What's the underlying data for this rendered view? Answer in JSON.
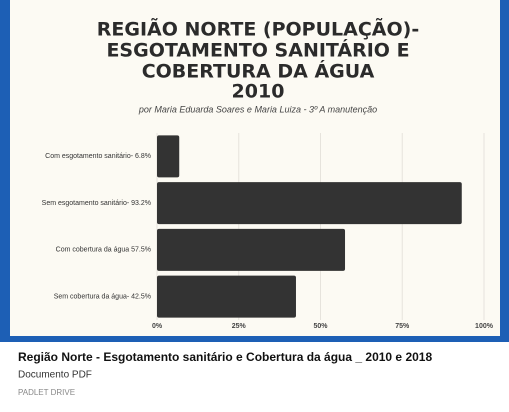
{
  "chart_data": {
    "type": "hbar",
    "title": [
      "REGIÃO NORTE (POPULAÇÃO)-",
      "ESGOTAMENTO SANITÁRIO E",
      "COBERTURA DA ÁGUA",
      "2010"
    ],
    "subtitle": "por Maria Eduarda Soares e Maria Luiza - 3º A manutenção",
    "categories": [
      "Com esgotamento sanitário- 6.8%",
      "Sem esgotamento sanitário- 93.2%",
      "Com cobertura da água 57.5%",
      "Sem cobertura da água- 42.5%"
    ],
    "values": [
      6.8,
      93.2,
      57.5,
      42.5
    ],
    "color": "#333333",
    "xlim": [
      0,
      100
    ],
    "xticks": [
      {
        "value": 0,
        "label": "0%"
      },
      {
        "value": 25,
        "label": "25%"
      },
      {
        "value": 50,
        "label": "50%"
      },
      {
        "value": 75,
        "label": "75%"
      },
      {
        "value": 100,
        "label": "100%"
      }
    ],
    "grid": true
  },
  "card": {
    "title": "Região Norte - Esgotamento sanitário e Cobertura da água _ 2010 e 2018",
    "subtitle": "Documento PDF",
    "source": "PADLET DRIVE"
  }
}
